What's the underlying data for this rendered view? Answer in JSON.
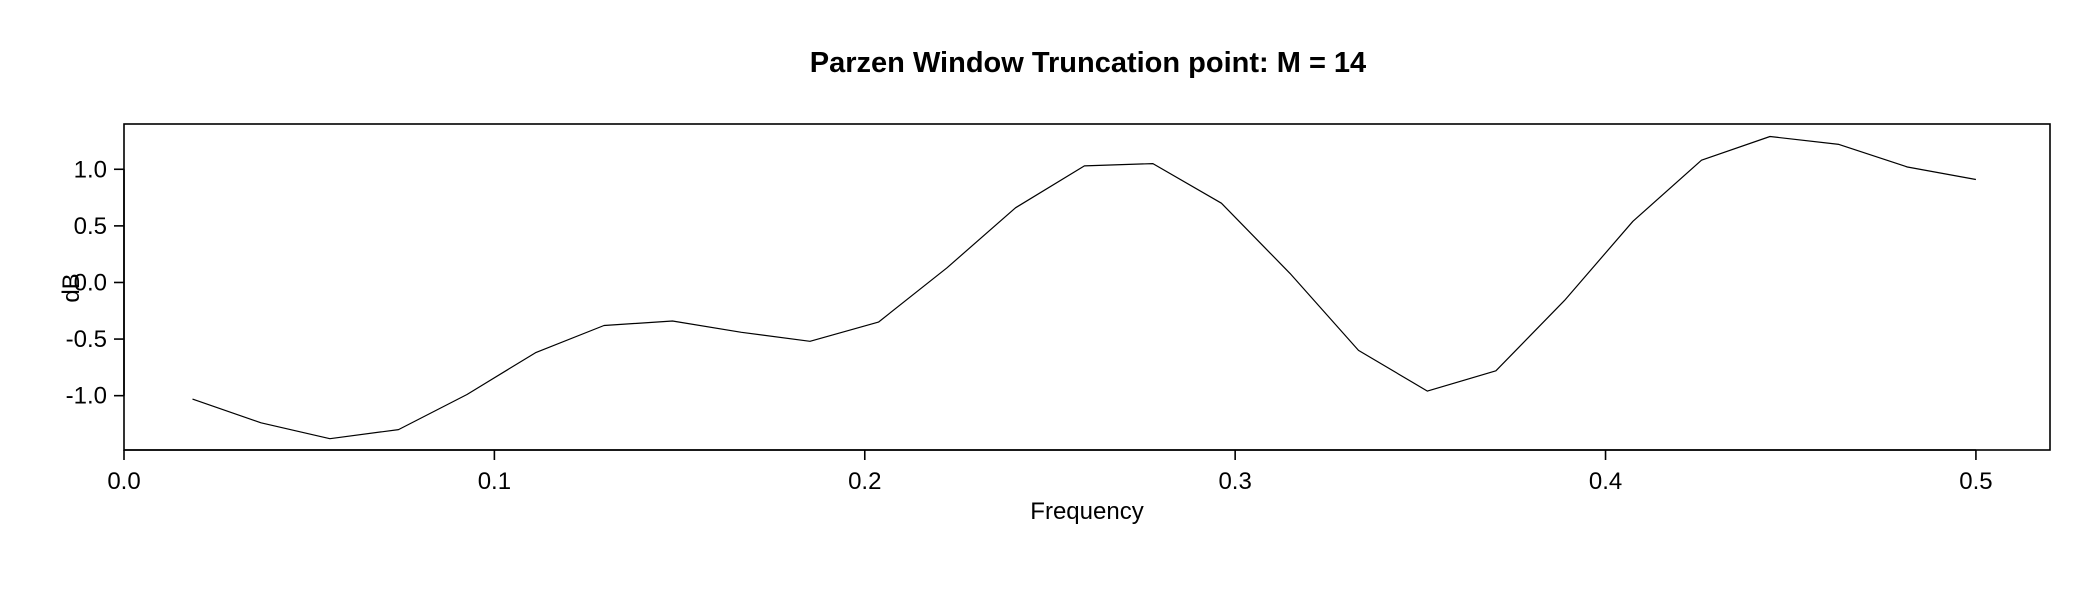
{
  "chart_data": {
    "type": "line",
    "title": "Parzen Window Truncation point: M = 14",
    "xlabel": "Frequency",
    "ylabel": "dB",
    "xlim": [
      0.0,
      0.52
    ],
    "ylim": [
      -1.48,
      1.4
    ],
    "xticks": [
      0.0,
      0.1,
      0.2,
      0.3,
      0.4,
      0.5
    ],
    "xtick_labels": [
      "0.0",
      "0.1",
      "0.2",
      "0.3",
      "0.4",
      "0.5"
    ],
    "yticks": [
      -1.0,
      -0.5,
      0.0,
      0.5,
      1.0
    ],
    "ytick_labels": [
      "-1.0",
      "-0.5",
      "0.0",
      "0.5",
      "1.0"
    ],
    "grid": false,
    "legend": "none",
    "colors": {
      "line": "#000000",
      "frame": "#000000",
      "background": "#ffffff"
    },
    "series": [
      {
        "x": [
          0.0185,
          0.037,
          0.0556,
          0.0741,
          0.0926,
          0.1111,
          0.1296,
          0.1481,
          0.1667,
          0.1852,
          0.2037,
          0.2222,
          0.2407,
          0.2593,
          0.2778,
          0.2963,
          0.3148,
          0.3333,
          0.3519,
          0.3704,
          0.3889,
          0.4074,
          0.4259,
          0.4444,
          0.463,
          0.4815,
          0.5
        ],
        "values": [
          -1.03,
          -1.24,
          -1.38,
          -1.3,
          -0.99,
          -0.62,
          -0.38,
          -0.34,
          -0.44,
          -0.52,
          -0.35,
          0.13,
          0.66,
          1.03,
          1.05,
          0.7,
          0.08,
          -0.6,
          -0.96,
          -0.78,
          -0.16,
          0.54,
          1.08,
          1.29,
          1.22,
          1.02,
          0.91
        ]
      }
    ]
  }
}
